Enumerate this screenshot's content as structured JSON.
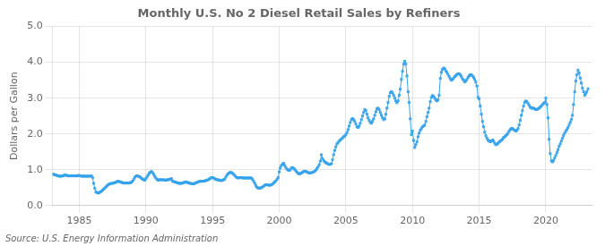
{
  "chart_data": {
    "type": "line",
    "title": "Monthly U.S. No 2 Diesel Retail Sales by Refiners",
    "y_label": "Dollars per Gallon",
    "annotations": [
      "Source: U.S. Energy Information Administration"
    ],
    "marker": "square",
    "line_style": "solid",
    "grid": true,
    "xlim": [
      1983.0,
      2023.5
    ],
    "xticks": [
      1985,
      1990,
      1995,
      2000,
      2005,
      2010,
      2015,
      2020
    ],
    "ylim": [
      0.0,
      5.0
    ],
    "yticks": [
      {
        "value": 0.0,
        "label": "0.0"
      },
      {
        "value": 1.0,
        "label": "1.0"
      },
      {
        "value": 2.0,
        "label": "2.0"
      },
      {
        "value": 3.0,
        "label": "3.0"
      },
      {
        "value": 4.0,
        "label": "4.0"
      },
      {
        "value": 5.0,
        "label": "5.0"
      }
    ],
    "x": [
      1983.0,
      1983.083,
      1983.167,
      1983.25,
      1983.333,
      1983.417,
      1983.5,
      1983.583,
      1983.667,
      1983.75,
      1983.833,
      1983.917,
      1984.0,
      1984.083,
      1984.167,
      1984.25,
      1984.333,
      1984.417,
      1984.5,
      1984.583,
      1984.667,
      1984.75,
      1984.833,
      1984.917,
      1985.0,
      1985.083,
      1985.167,
      1985.25,
      1985.333,
      1985.417,
      1985.5,
      1985.583,
      1985.667,
      1985.75,
      1985.833,
      1985.917,
      1986.0,
      1986.083,
      1986.167,
      1986.25,
      1986.333,
      1986.417,
      1986.5,
      1986.583,
      1986.667,
      1986.75,
      1986.833,
      1986.917,
      1987.0,
      1987.083,
      1987.167,
      1987.25,
      1987.333,
      1987.417,
      1987.5,
      1987.583,
      1987.667,
      1987.75,
      1987.833,
      1987.917,
      1988.0,
      1988.083,
      1988.167,
      1988.25,
      1988.333,
      1988.417,
      1988.5,
      1988.583,
      1988.667,
      1988.75,
      1988.833,
      1988.917,
      1989.0,
      1989.083,
      1989.167,
      1989.25,
      1989.333,
      1989.417,
      1989.5,
      1989.583,
      1989.667,
      1989.75,
      1989.833,
      1989.917,
      1990.0,
      1990.083,
      1990.167,
      1990.25,
      1990.333,
      1990.417,
      1990.5,
      1990.583,
      1990.667,
      1990.75,
      1990.833,
      1990.917,
      1991.0,
      1991.083,
      1991.167,
      1991.25,
      1991.333,
      1991.417,
      1991.5,
      1991.583,
      1991.667,
      1991.75,
      1991.833,
      1991.917,
      1992.0,
      1992.083,
      1992.167,
      1992.25,
      1992.333,
      1992.417,
      1992.5,
      1992.583,
      1992.667,
      1992.75,
      1992.833,
      1992.917,
      1993.0,
      1993.083,
      1993.167,
      1993.25,
      1993.333,
      1993.417,
      1993.5,
      1993.583,
      1993.667,
      1993.75,
      1993.833,
      1993.917,
      1994.0,
      1994.083,
      1994.167,
      1994.25,
      1994.333,
      1994.417,
      1994.5,
      1994.583,
      1994.667,
      1994.75,
      1994.833,
      1994.917,
      1995.0,
      1995.083,
      1995.167,
      1995.25,
      1995.333,
      1995.417,
      1995.5,
      1995.583,
      1995.667,
      1995.75,
      1995.833,
      1995.917,
      1996.0,
      1996.083,
      1996.167,
      1996.25,
      1996.333,
      1996.417,
      1996.5,
      1996.583,
      1996.667,
      1996.75,
      1996.833,
      1996.917,
      1997.0,
      1997.083,
      1997.167,
      1997.25,
      1997.333,
      1997.417,
      1997.5,
      1997.583,
      1997.667,
      1997.75,
      1997.833,
      1997.917,
      1998.0,
      1998.083,
      1998.167,
      1998.25,
      1998.333,
      1998.417,
      1998.5,
      1998.583,
      1998.667,
      1998.75,
      1998.833,
      1998.917,
      1999.0,
      1999.083,
      1999.167,
      1999.25,
      1999.333,
      1999.417,
      1999.5,
      1999.583,
      1999.667,
      1999.75,
      1999.833,
      1999.917,
      2000.0,
      2000.083,
      2000.167,
      2000.25,
      2000.333,
      2000.417,
      2000.5,
      2000.583,
      2000.667,
      2000.75,
      2000.833,
      2000.917,
      2001.0,
      2001.083,
      2001.167,
      2001.25,
      2001.333,
      2001.417,
      2001.5,
      2001.583,
      2001.667,
      2001.75,
      2001.833,
      2001.917,
      2002.0,
      2002.083,
      2002.167,
      2002.25,
      2002.333,
      2002.417,
      2002.5,
      2002.583,
      2002.667,
      2002.75,
      2002.833,
      2002.917,
      2003.0,
      2003.083,
      2003.167,
      2003.25,
      2003.333,
      2003.417,
      2003.5,
      2003.583,
      2003.667,
      2003.75,
      2003.833,
      2003.917,
      2004.0,
      2004.083,
      2004.167,
      2004.25,
      2004.333,
      2004.417,
      2004.5,
      2004.583,
      2004.667,
      2004.75,
      2004.833,
      2004.917,
      2005.0,
      2005.083,
      2005.167,
      2005.25,
      2005.333,
      2005.417,
      2005.5,
      2005.583,
      2005.667,
      2005.75,
      2005.833,
      2005.917,
      2006.0,
      2006.083,
      2006.167,
      2006.25,
      2006.333,
      2006.417,
      2006.5,
      2006.583,
      2006.667,
      2006.75,
      2006.833,
      2006.917,
      2007.0,
      2007.083,
      2007.167,
      2007.25,
      2007.333,
      2007.417,
      2007.5,
      2007.583,
      2007.667,
      2007.75,
      2007.833,
      2007.917,
      2008.0,
      2008.083,
      2008.167,
      2008.25,
      2008.333,
      2008.417,
      2008.5,
      2008.583,
      2008.667,
      2008.75,
      2008.833,
      2008.917,
      2009.0,
      2009.083,
      2009.167,
      2009.25,
      2009.333,
      2009.417,
      2009.5,
      2009.583,
      2009.667,
      2009.75,
      2009.833,
      2009.917,
      2010.0,
      2010.083,
      2010.167,
      2010.25,
      2010.333,
      2010.417,
      2010.5,
      2010.583,
      2010.667,
      2010.75,
      2010.833,
      2010.917,
      2011.0,
      2011.083,
      2011.167,
      2011.25,
      2011.333,
      2011.417,
      2011.5,
      2011.583,
      2011.667,
      2011.75,
      2011.833,
      2011.917,
      2012.0,
      2012.083,
      2012.167,
      2012.25,
      2012.333,
      2012.417,
      2012.5,
      2012.583,
      2012.667,
      2012.75,
      2012.833,
      2012.917,
      2013.0,
      2013.083,
      2013.167,
      2013.25,
      2013.333,
      2013.417,
      2013.5,
      2013.583,
      2013.667,
      2013.75,
      2013.833,
      2013.917,
      2014.0,
      2014.083,
      2014.167,
      2014.25,
      2014.333,
      2014.417,
      2014.5,
      2014.583,
      2014.667,
      2014.75,
      2014.833,
      2014.917,
      2015.0,
      2015.083,
      2015.167,
      2015.25,
      2015.333,
      2015.417,
      2015.5,
      2015.583,
      2015.667,
      2015.75,
      2015.833,
      2015.917,
      2016.0,
      2016.083,
      2016.167,
      2016.25,
      2016.333,
      2016.417,
      2016.5,
      2016.583,
      2016.667,
      2016.75,
      2016.833,
      2016.917,
      2017.0,
      2017.083,
      2017.167,
      2017.25,
      2017.333,
      2017.417,
      2017.5,
      2017.583,
      2017.667,
      2017.75,
      2017.833,
      2017.917,
      2018.0,
      2018.083,
      2018.167,
      2018.25,
      2018.333,
      2018.417,
      2018.5,
      2018.583,
      2018.667,
      2018.75,
      2018.833,
      2018.917,
      2019.0,
      2019.083,
      2019.167,
      2019.25,
      2019.333,
      2019.417,
      2019.5,
      2019.583,
      2019.667,
      2019.75,
      2019.833,
      2019.917,
      2020.0,
      2020.083,
      2020.167,
      2020.25,
      2020.333,
      2020.417,
      2020.5,
      2020.583,
      2020.667,
      2020.75,
      2020.833,
      2020.917,
      2021.0,
      2021.083,
      2021.167,
      2021.25,
      2021.333,
      2021.417,
      2021.5,
      2021.583,
      2021.667,
      2021.75,
      2021.833,
      2021.917,
      2022.0,
      2022.083,
      2022.167,
      2022.25,
      2022.333,
      2022.417,
      2022.5,
      2022.583,
      2022.667,
      2022.75,
      2022.833,
      2022.917,
      2023.0,
      2023.083,
      2023.167
    ],
    "values": [
      0.88,
      0.87,
      0.86,
      0.85,
      0.84,
      0.83,
      0.82,
      0.82,
      0.82,
      0.83,
      0.84,
      0.85,
      0.85,
      0.84,
      0.83,
      0.83,
      0.83,
      0.83,
      0.83,
      0.83,
      0.83,
      0.83,
      0.83,
      0.84,
      0.84,
      0.83,
      0.82,
      0.82,
      0.82,
      0.82,
      0.82,
      0.82,
      0.82,
      0.82,
      0.82,
      0.83,
      0.78,
      0.62,
      0.48,
      0.38,
      0.36,
      0.35,
      0.36,
      0.38,
      0.4,
      0.43,
      0.46,
      0.49,
      0.52,
      0.55,
      0.58,
      0.6,
      0.61,
      0.62,
      0.62,
      0.63,
      0.64,
      0.65,
      0.67,
      0.68,
      0.67,
      0.66,
      0.65,
      0.64,
      0.63,
      0.63,
      0.63,
      0.63,
      0.63,
      0.63,
      0.64,
      0.65,
      0.68,
      0.73,
      0.79,
      0.82,
      0.83,
      0.82,
      0.81,
      0.79,
      0.76,
      0.74,
      0.72,
      0.71,
      0.75,
      0.8,
      0.85,
      0.9,
      0.93,
      0.95,
      0.92,
      0.87,
      0.82,
      0.77,
      0.73,
      0.71,
      0.72,
      0.72,
      0.72,
      0.72,
      0.72,
      0.71,
      0.71,
      0.72,
      0.72,
      0.73,
      0.74,
      0.75,
      0.68,
      0.67,
      0.66,
      0.65,
      0.64,
      0.63,
      0.62,
      0.62,
      0.62,
      0.63,
      0.64,
      0.65,
      0.66,
      0.65,
      0.64,
      0.63,
      0.62,
      0.61,
      0.61,
      0.61,
      0.62,
      0.63,
      0.65,
      0.66,
      0.67,
      0.68,
      0.68,
      0.68,
      0.68,
      0.69,
      0.7,
      0.71,
      0.72,
      0.74,
      0.76,
      0.78,
      0.78,
      0.77,
      0.75,
      0.73,
      0.72,
      0.72,
      0.71,
      0.7,
      0.7,
      0.71,
      0.72,
      0.74,
      0.8,
      0.85,
      0.89,
      0.91,
      0.93,
      0.92,
      0.9,
      0.87,
      0.84,
      0.8,
      0.78,
      0.77,
      0.78,
      0.78,
      0.78,
      0.77,
      0.77,
      0.77,
      0.77,
      0.77,
      0.77,
      0.77,
      0.77,
      0.77,
      0.73,
      0.68,
      0.62,
      0.55,
      0.51,
      0.49,
      0.49,
      0.49,
      0.5,
      0.52,
      0.54,
      0.57,
      0.58,
      0.58,
      0.57,
      0.57,
      0.57,
      0.58,
      0.6,
      0.63,
      0.66,
      0.69,
      0.73,
      0.78,
      0.94,
      1.05,
      1.12,
      1.16,
      1.18,
      1.12,
      1.06,
      1.02,
      0.99,
      0.98,
      1.0,
      1.05,
      1.06,
      1.04,
      1.01,
      0.97,
      0.93,
      0.9,
      0.89,
      0.89,
      0.91,
      0.93,
      0.95,
      0.96,
      0.95,
      0.94,
      0.92,
      0.91,
      0.91,
      0.92,
      0.93,
      0.94,
      0.96,
      0.99,
      1.03,
      1.08,
      1.14,
      1.24,
      1.42,
      1.31,
      1.26,
      1.22,
      1.2,
      1.18,
      1.16,
      1.15,
      1.15,
      1.17,
      1.28,
      1.42,
      1.54,
      1.64,
      1.72,
      1.76,
      1.8,
      1.83,
      1.86,
      1.89,
      1.92,
      1.94,
      1.98,
      2.04,
      2.12,
      2.22,
      2.32,
      2.4,
      2.43,
      2.4,
      2.35,
      2.28,
      2.2,
      2.18,
      2.22,
      2.3,
      2.4,
      2.5,
      2.6,
      2.68,
      2.65,
      2.55,
      2.45,
      2.38,
      2.32,
      2.3,
      2.35,
      2.42,
      2.52,
      2.62,
      2.7,
      2.72,
      2.68,
      2.6,
      2.52,
      2.45,
      2.4,
      2.42,
      2.55,
      2.72,
      2.88,
      3.05,
      3.15,
      3.18,
      3.15,
      3.08,
      3.0,
      2.92,
      2.87,
      2.92,
      3.08,
      3.25,
      3.52,
      3.75,
      3.95,
      4.03,
      3.95,
      3.62,
      3.18,
      2.88,
      2.42,
      1.98,
      2.08,
      1.82,
      1.62,
      1.7,
      1.78,
      1.92,
      2.02,
      2.1,
      2.15,
      2.2,
      2.22,
      2.25,
      2.35,
      2.48,
      2.6,
      2.72,
      2.9,
      3.02,
      3.07,
      3.05,
      3.0,
      2.95,
      2.92,
      2.95,
      3.08,
      3.55,
      3.72,
      3.8,
      3.84,
      3.82,
      3.76,
      3.72,
      3.66,
      3.6,
      3.54,
      3.5,
      3.52,
      3.56,
      3.6,
      3.63,
      3.66,
      3.68,
      3.68,
      3.65,
      3.6,
      3.54,
      3.5,
      3.45,
      3.48,
      3.52,
      3.58,
      3.62,
      3.65,
      3.65,
      3.62,
      3.58,
      3.52,
      3.45,
      3.34,
      3.02,
      2.98,
      2.78,
      2.55,
      2.35,
      2.2,
      2.05,
      1.95,
      1.88,
      1.83,
      1.8,
      1.78,
      1.8,
      1.83,
      1.8,
      1.74,
      1.7,
      1.71,
      1.74,
      1.77,
      1.8,
      1.82,
      1.85,
      1.9,
      1.92,
      1.95,
      1.98,
      2.02,
      2.08,
      2.12,
      2.15,
      2.15,
      2.12,
      2.1,
      2.08,
      2.1,
      2.15,
      2.25,
      2.38,
      2.52,
      2.65,
      2.78,
      2.88,
      2.92,
      2.9,
      2.85,
      2.8,
      2.75,
      2.72,
      2.72,
      2.72,
      2.7,
      2.68,
      2.68,
      2.7,
      2.72,
      2.75,
      2.78,
      2.82,
      2.85,
      2.88,
      3.0,
      2.82,
      2.45,
      1.85,
      1.45,
      1.25,
      1.22,
      1.26,
      1.33,
      1.4,
      1.48,
      1.56,
      1.65,
      1.72,
      1.8,
      1.88,
      1.96,
      2.02,
      2.08,
      2.12,
      2.18,
      2.25,
      2.32,
      2.4,
      2.52,
      2.82,
      3.18,
      3.48,
      3.65,
      3.78,
      3.7,
      3.56,
      3.42,
      3.28,
      3.18,
      3.08,
      3.12,
      3.18,
      3.26
    ]
  }
}
